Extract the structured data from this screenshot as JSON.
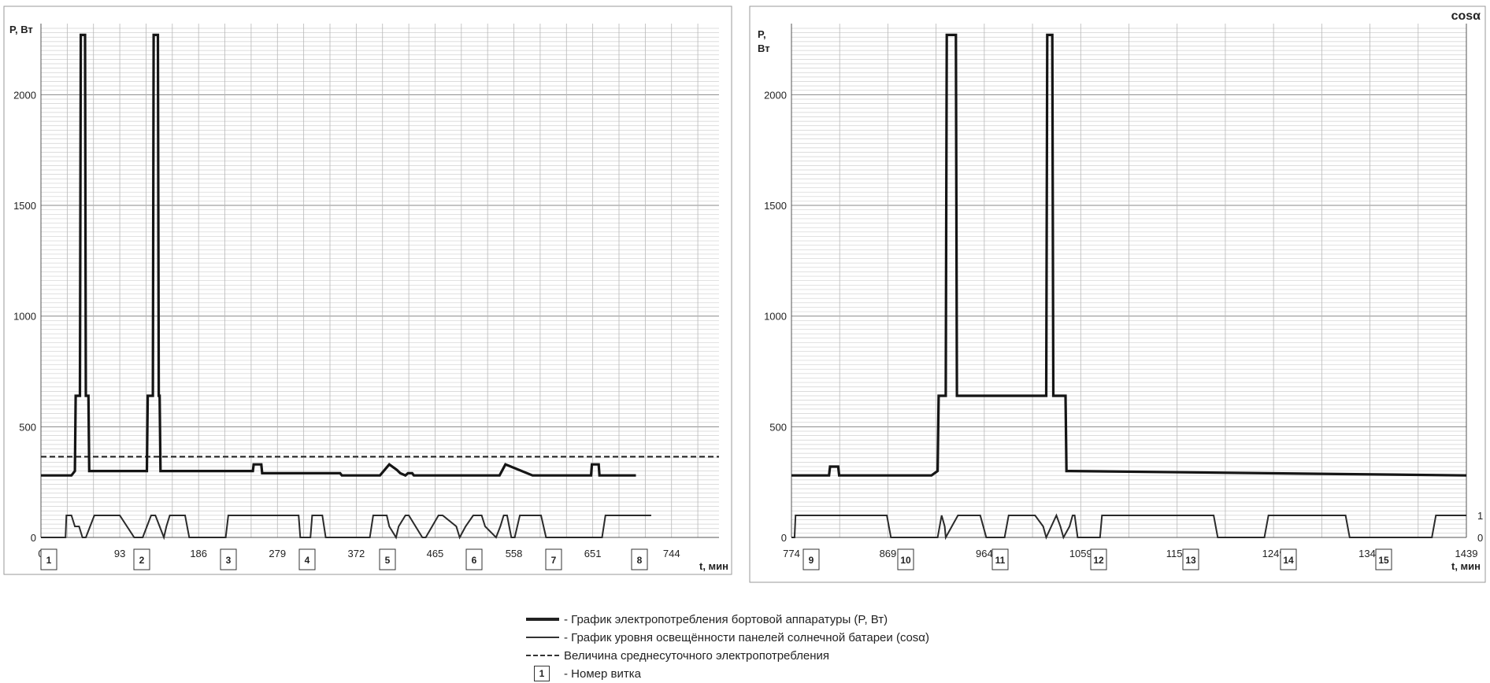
{
  "legend": {
    "power": "- График электропотребления бортовой аппаратуры (P, Вт)",
    "illumination": "- График уровня освещённости панелей солнечной батареи (cosα)",
    "average": "Величина среднесуточного электропотребления",
    "orbit_box": "1",
    "orbit": "- Номер витка"
  },
  "chart_data": [
    {
      "type": "line",
      "title": "",
      "ylabel": "P, Вт",
      "xlabel": "t, мин",
      "xlim": [
        0,
        800
      ],
      "ylim": [
        0,
        2300
      ],
      "y_ticks": [
        "0",
        "500",
        "1000",
        "1500",
        "2000"
      ],
      "x_ticks": [
        "0",
        "93",
        "186",
        "279",
        "372",
        "465",
        "558",
        "651",
        "744"
      ],
      "orbits": [
        "1",
        "2",
        "3",
        "4",
        "5",
        "6",
        "7",
        "8"
      ],
      "grid": true,
      "average_power": 365,
      "power": {
        "t": [
          0,
          36,
          40,
          41,
          46,
          47,
          52,
          53,
          56,
          57,
          121,
          125,
          126,
          132,
          133,
          138,
          139,
          140,
          141,
          250,
          251,
          260,
          261,
          353,
          355,
          363,
          367,
          371,
          372,
          400,
          411,
          420,
          424,
          430,
          433,
          438,
          440,
          450,
          457,
          468,
          476,
          478,
          486,
          492,
          518,
          529,
          541,
          548,
          580,
          649,
          650,
          658,
          659,
          702
        ],
        "p": [
          280,
          280,
          300,
          640,
          640,
          2270,
          2270,
          640,
          640,
          300,
          300,
          300,
          640,
          640,
          2270,
          2270,
          640,
          640,
          300,
          300,
          330,
          330,
          290,
          290,
          280,
          280,
          280,
          280,
          280,
          280,
          330,
          305,
          290,
          280,
          290,
          290,
          280,
          280,
          280,
          280,
          280,
          280,
          280,
          280,
          280,
          280,
          280,
          330,
          280,
          280,
          330,
          330,
          280,
          280
        ]
      },
      "illumination": {
        "t": [
          0,
          29,
          30,
          36,
          40,
          45,
          49,
          53,
          58,
          63,
          73,
          90,
          93,
          110,
          120,
          130,
          135,
          140,
          145,
          148,
          152,
          170,
          175,
          218,
          221,
          240,
          244,
          270,
          275,
          304,
          306,
          318,
          320,
          332,
          336,
          354,
          360,
          388,
          392,
          408,
          411,
          419,
          422,
          430,
          434,
          450,
          454,
          469,
          474,
          490,
          494,
          501,
          510,
          520,
          524,
          537,
          542,
          546,
          550,
          555,
          559,
          565,
          570,
          590,
          596,
          662,
          666,
          691,
          695,
          720
        ],
        "c": [
          0,
          0,
          1,
          1,
          0.5,
          0.5,
          0,
          0,
          0.5,
          1,
          1,
          1,
          1,
          0,
          0,
          1,
          1,
          0.5,
          0,
          0.5,
          1,
          1,
          0,
          0,
          1,
          1,
          1,
          1,
          1,
          1,
          0,
          0,
          1,
          1,
          0,
          0,
          0,
          0,
          1,
          1,
          0.5,
          0,
          0.5,
          1,
          1,
          0,
          0,
          1,
          1,
          0.5,
          0,
          0.5,
          1,
          1,
          0.5,
          0,
          0.5,
          1,
          1,
          0,
          0,
          1,
          1,
          1,
          0,
          0,
          1,
          1,
          1,
          1
        ]
      }
    },
    {
      "type": "line",
      "title": "",
      "ylabel": "P, Вт",
      "y2label": "cosα",
      "xlabel": "t, мин",
      "xlim": [
        774,
        1439
      ],
      "ylim": [
        0,
        2300
      ],
      "y_ticks": [
        "0",
        "500",
        "1000",
        "1500",
        "2000"
      ],
      "y2_ticks": [
        "0",
        "1"
      ],
      "x_ticks": [
        "774",
        "869",
        "964",
        "1059",
        "1154",
        "1249",
        "1344",
        "1439"
      ],
      "orbits": [
        "9",
        "10",
        "11",
        "12",
        "13",
        "14",
        "15"
      ],
      "grid": true,
      "power": {
        "t": [
          774,
          811,
          812,
          820,
          821,
          912,
          918,
          919,
          926,
          927,
          936,
          937,
          1022,
          1025,
          1026,
          1031,
          1032,
          1044,
          1045,
          1049,
          1439
        ],
        "p": [
          280,
          280,
          320,
          320,
          280,
          280,
          300,
          640,
          640,
          2270,
          2270,
          640,
          640,
          640,
          2270,
          2270,
          640,
          640,
          300,
          300,
          280
        ]
      },
      "illumination": {
        "t": [
          774,
          777,
          778,
          816,
          820,
          868,
          872,
          914,
          918,
          922,
          925,
          926,
          932,
          938,
          945,
          960,
          966,
          984,
          988,
          1010,
          1014,
          1022,
          1025,
          1030,
          1035,
          1039,
          1042,
          1048,
          1051,
          1053,
          1056,
          1078,
          1080,
          1190,
          1194,
          1240,
          1244,
          1294,
          1297,
          1320,
          1324,
          1380,
          1383,
          1405,
          1409,
          1439
        ],
        "c": [
          0,
          0,
          1,
          1,
          1,
          1,
          0,
          0,
          0,
          1,
          0.5,
          0,
          0.5,
          1,
          1,
          1,
          0,
          0,
          1,
          1,
          1,
          0.5,
          0,
          0.5,
          1,
          0.5,
          0,
          0.5,
          1,
          1,
          0,
          0,
          1,
          1,
          0,
          0,
          1,
          1,
          1,
          1,
          0,
          0,
          0,
          0,
          1,
          1
        ]
      }
    }
  ]
}
